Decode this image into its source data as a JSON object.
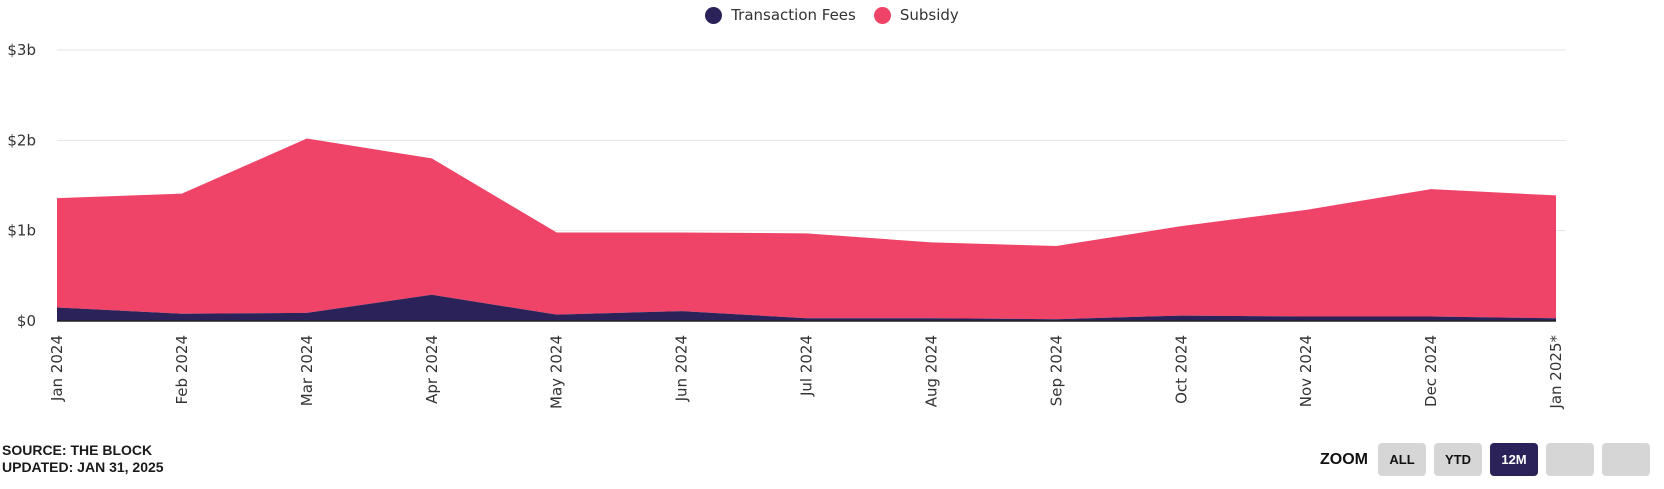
{
  "chart_data": {
    "type": "area",
    "stacked": true,
    "categories": [
      "Jan 2024",
      "Feb 2024",
      "Mar 2024",
      "Apr 2024",
      "May 2024",
      "Jun 2024",
      "Jul 2024",
      "Aug 2024",
      "Sep 2024",
      "Oct 2024",
      "Nov 2024",
      "Dec 2024",
      "Jan 2025*"
    ],
    "series": [
      {
        "name": "Transaction Fees",
        "color": "#2a2259",
        "values": [
          0.15,
          0.08,
          0.09,
          0.29,
          0.07,
          0.11,
          0.03,
          0.03,
          0.02,
          0.06,
          0.05,
          0.05,
          0.03
        ]
      },
      {
        "name": "Subsidy",
        "color": "#ef4368",
        "values": [
          1.21,
          1.33,
          1.93,
          1.51,
          0.91,
          0.87,
          0.94,
          0.84,
          0.81,
          0.99,
          1.18,
          1.41,
          1.36
        ]
      }
    ],
    "y_ticks": [
      0,
      1,
      2,
      3
    ],
    "y_tick_labels": [
      "$0",
      "$1b",
      "$2b",
      "$3b"
    ],
    "ylim": [
      0,
      3
    ],
    "y_unit": "billion USD",
    "grid": true,
    "legend_position": "top-center"
  },
  "footer": {
    "source": "SOURCE: THE BLOCK",
    "updated": "UPDATED: JAN 31, 2025"
  },
  "zoom": {
    "label": "ZOOM",
    "buttons": [
      "ALL",
      "YTD",
      "12M",
      "",
      ""
    ],
    "active": "12M"
  }
}
